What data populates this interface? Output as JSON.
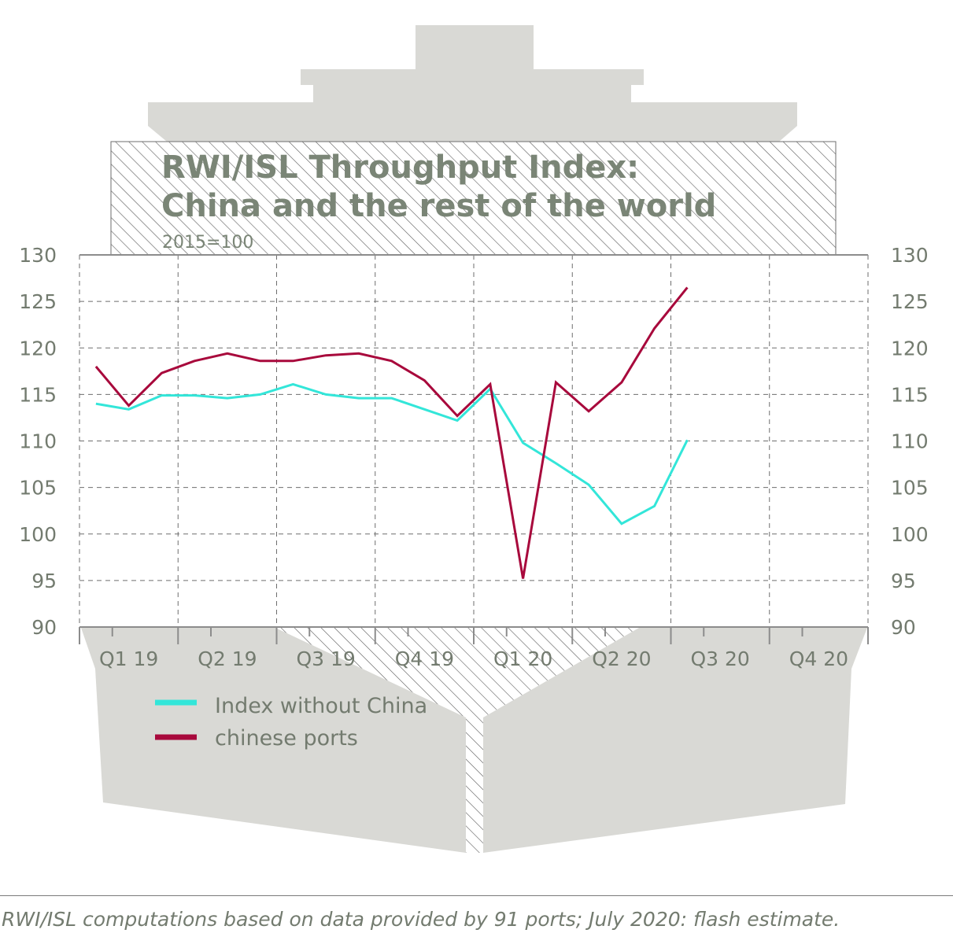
{
  "chart_data": {
    "type": "line",
    "title": "RWI/ISL Throughput Index:",
    "title_line2": "China and the rest of the world",
    "subtitle": "2015=100",
    "x": [
      "Jan 2019",
      "Feb 2019",
      "Mar 2019",
      "Apr 2019",
      "May 2019",
      "Jun 2019",
      "Jul 2019",
      "Aug 2019",
      "Sep 2019",
      "Oct 2019",
      "Nov 2019",
      "Dec 2019",
      "Jan 2020",
      "Feb 2020",
      "Mar 2020",
      "Apr 2020",
      "May 2020",
      "Jun 2020",
      "Jul 2020"
    ],
    "x_tick_labels": [
      "Q1 19",
      "Q2 19",
      "Q3 19",
      "Q4 19",
      "Q1 20",
      "Q2 20",
      "Q3 20",
      "Q4 20"
    ],
    "ylim": [
      90,
      130
    ],
    "y_ticks": [
      "130",
      "125",
      "120",
      "115",
      "110",
      "105",
      "100",
      "95",
      "90"
    ],
    "grid": true,
    "series": [
      {
        "name": "Index without China",
        "color": "#33e6d9",
        "values": [
          114.0,
          113.4,
          114.9,
          114.9,
          114.6,
          115.0,
          116.1,
          115.0,
          114.6,
          114.6,
          113.4,
          112.2,
          115.6,
          109.8,
          107.6,
          105.3,
          101.1,
          103.0,
          110.1
        ]
      },
      {
        "name": "chinese ports",
        "color": "#a8093c",
        "values": [
          118.0,
          113.8,
          117.3,
          118.6,
          119.4,
          118.6,
          118.6,
          119.2,
          119.4,
          118.6,
          116.5,
          112.7,
          116.1,
          95.2,
          116.3,
          113.2,
          116.3,
          122.1,
          126.5
        ]
      }
    ],
    "legend_position": "bottom-left"
  },
  "footer": {
    "note": "RWI/ISL computations based on data provided by 91 ports; July 2020: flash estimate."
  }
}
